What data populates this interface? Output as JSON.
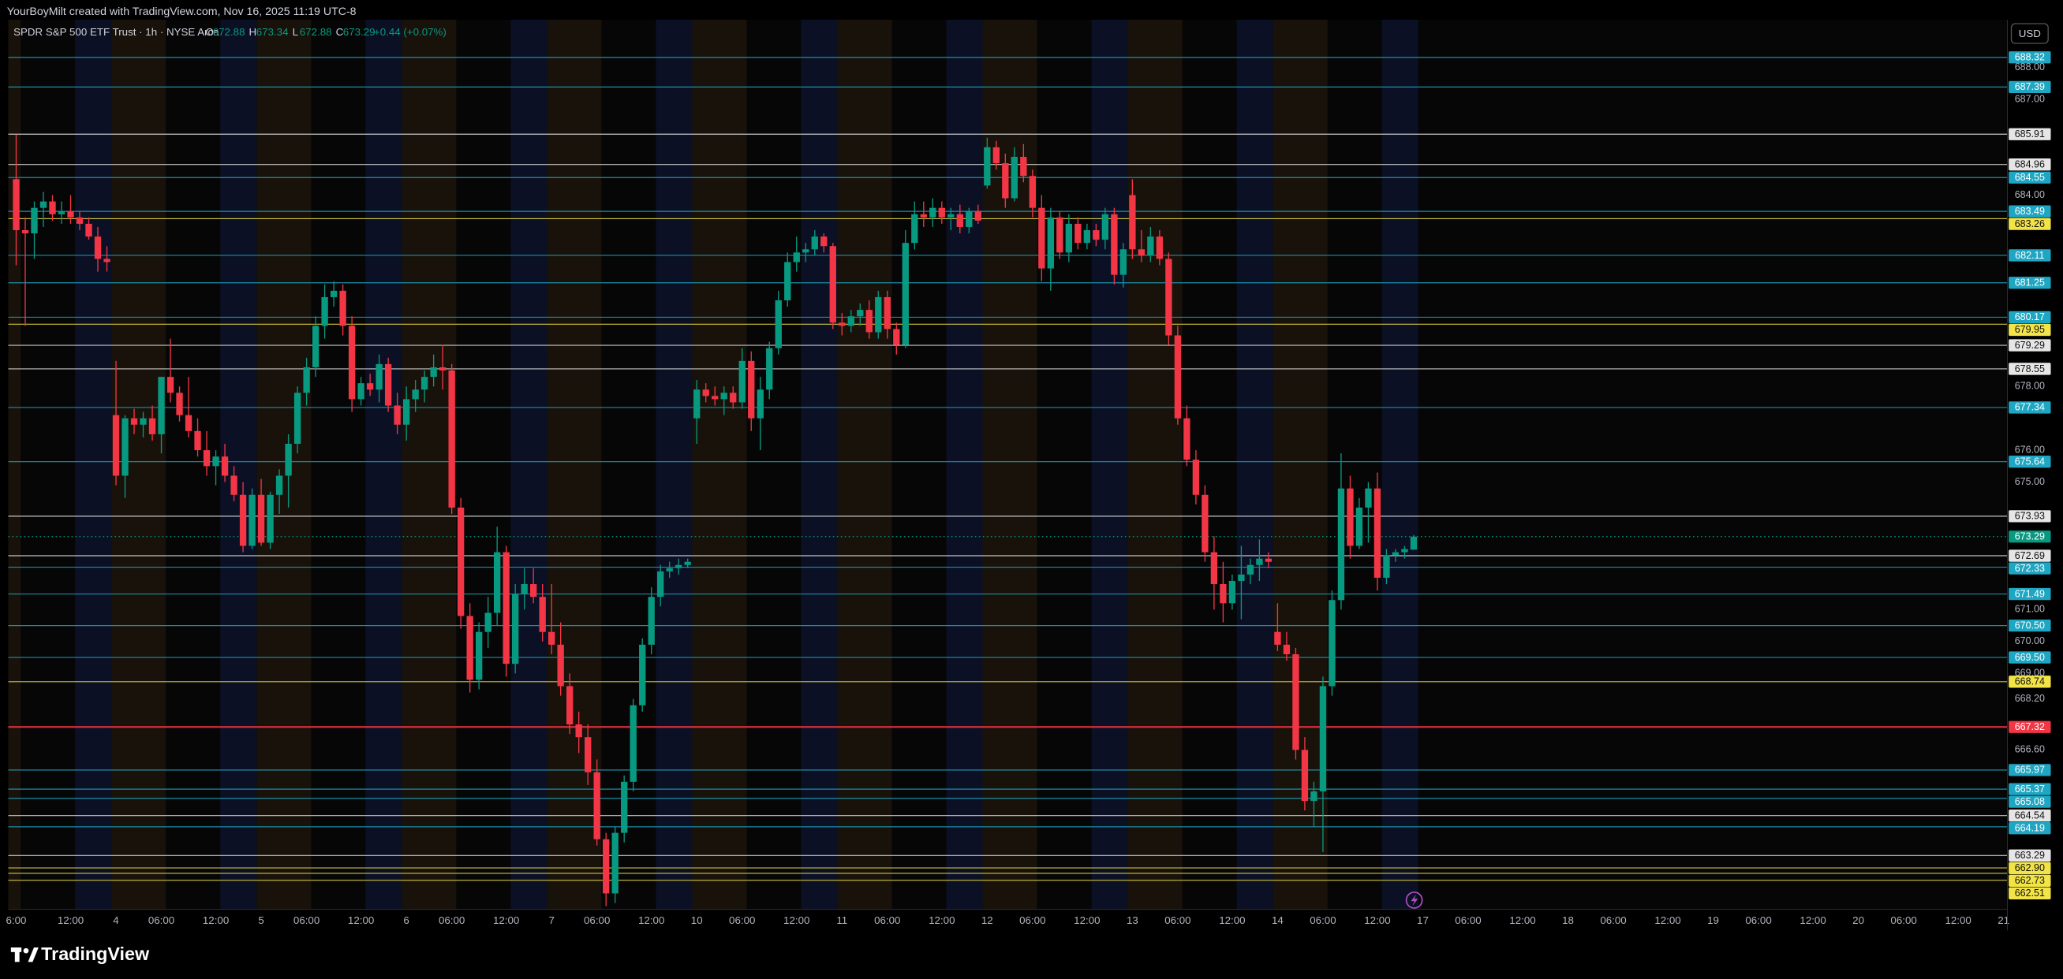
{
  "header": {
    "credit": "YourBoyMilt created with TradingView.com, Nov 16, 2025 11:19 UTC-8"
  },
  "legend": {
    "ohlc_labels": [
      "O",
      "H",
      "L",
      "C"
    ],
    "change": "+0.44 (+0.07%)"
  },
  "footer": {
    "brand": "TradingView"
  },
  "chart_data": {
    "type": "candlestick",
    "title": "SPDR S&P 500 ETF Trust · 1h · NYSE Arca",
    "currency": "USD",
    "up_color": "#089981",
    "down_color": "#f23645",
    "grid": false,
    "ylim": [
      661.6,
      689.5
    ],
    "yticks": [
      {
        "value": 688,
        "label": "688.00"
      },
      {
        "value": 687,
        "label": "687.00"
      },
      {
        "value": 684,
        "label": "684.00"
      },
      {
        "value": 678,
        "label": "678.00"
      },
      {
        "value": 676,
        "label": "676.00"
      },
      {
        "value": 675,
        "label": "675.00"
      },
      {
        "value": 671,
        "label": "671.00"
      },
      {
        "value": 670,
        "label": "670.00"
      },
      {
        "value": 669,
        "label": "669.00"
      },
      {
        "value": 668.2,
        "label": "668.20"
      },
      {
        "value": 666.6,
        "label": "666.60"
      }
    ],
    "categories": [
      "6:00",
      null,
      null,
      null,
      null,
      null,
      "12:00",
      null,
      null,
      null,
      null,
      "4",
      null,
      null,
      null,
      null,
      "06:00",
      null,
      null,
      null,
      null,
      null,
      "12:00",
      null,
      null,
      null,
      null,
      "5",
      null,
      null,
      null,
      null,
      "06:00",
      null,
      null,
      null,
      null,
      null,
      "12:00",
      null,
      null,
      null,
      null,
      "6",
      null,
      null,
      null,
      null,
      "06:00",
      null,
      null,
      null,
      null,
      null,
      "12:00",
      null,
      null,
      null,
      null,
      "7",
      null,
      null,
      null,
      null,
      "06:00",
      null,
      null,
      null,
      null,
      null,
      "12:00",
      null,
      null,
      null,
      null,
      "10",
      null,
      null,
      null,
      null,
      "06:00",
      null,
      null,
      null,
      null,
      null,
      "12:00",
      null,
      null,
      null,
      null,
      "11",
      null,
      null,
      null,
      null,
      "06:00",
      null,
      null,
      null,
      null,
      null,
      "12:00",
      null,
      null,
      null,
      null,
      "12",
      null,
      null,
      null,
      null,
      "06:00",
      null,
      null,
      null,
      null,
      null,
      "12:00",
      null,
      null,
      null,
      null,
      "13",
      null,
      null,
      null,
      null,
      "06:00",
      null,
      null,
      null,
      null,
      null,
      "12:00",
      null,
      null,
      null,
      null,
      "14",
      null,
      null,
      null,
      null,
      "06:00",
      null,
      null,
      null,
      null,
      null,
      "12:00",
      null,
      null,
      null,
      null,
      "17",
      null,
      null,
      null,
      null,
      "06:00",
      null,
      null,
      null,
      null,
      null,
      "12:00",
      null,
      null,
      null,
      null,
      "18",
      null,
      null,
      null,
      null,
      "06:00",
      null,
      null,
      null,
      null,
      null,
      "12:00",
      null,
      null,
      null,
      null,
      "19",
      null,
      null,
      null,
      null,
      "06:00",
      null,
      null,
      null,
      null,
      null,
      "12:00",
      null,
      null,
      null,
      null,
      "20",
      null,
      null,
      null,
      null,
      "06:00",
      null,
      null,
      null,
      null,
      null,
      "12:00",
      null,
      null,
      null,
      null,
      "21"
    ],
    "open": [
      684.5,
      682.9,
      682.8,
      683.6,
      683.8,
      683.4,
      683.5,
      683.3,
      683.1,
      682.7,
      682.0,
      677.1,
      675.2,
      677.0,
      676.8,
      677.0,
      676.5,
      678.3,
      677.8,
      677.1,
      676.6,
      676.0,
      675.5,
      675.8,
      675.2,
      674.6,
      673.0,
      674.6,
      673.1,
      674.6,
      675.2,
      676.2,
      677.8,
      678.6,
      679.9,
      680.8,
      681.0,
      679.9,
      677.6,
      678.1,
      677.9,
      678.7,
      677.4,
      676.8,
      677.6,
      677.9,
      678.3,
      678.6,
      678.5,
      674.2,
      670.8,
      668.8,
      670.3,
      670.9,
      672.8,
      669.3,
      671.5,
      671.8,
      671.4,
      670.3,
      669.9,
      668.6,
      667.4,
      667.0,
      665.9,
      663.8,
      662.1,
      664.0,
      665.6,
      668.0,
      669.9,
      671.4,
      672.2,
      672.3,
      672.4,
      677.0,
      677.9,
      677.7,
      677.6,
      677.8,
      677.5,
      678.8,
      677.0,
      677.9,
      679.2,
      680.7,
      681.9,
      682.2,
      682.3,
      682.7,
      682.4,
      680.0,
      679.9,
      680.2,
      680.4,
      679.7,
      680.8,
      679.8,
      679.3,
      682.5,
      683.4,
      683.3,
      683.6,
      683.3,
      683.4,
      683.0,
      683.5,
      684.3,
      685.5,
      685.0,
      683.9,
      685.2,
      684.6,
      683.6,
      681.7,
      683.3,
      682.2,
      683.1,
      682.5,
      682.9,
      682.6,
      683.4,
      681.5,
      684.0,
      682.3,
      682.1,
      682.7,
      682.0,
      679.6,
      677.0,
      675.7,
      674.6,
      672.8,
      671.8,
      671.2,
      671.9,
      672.1,
      672.4,
      672.6,
      670.3,
      669.9,
      669.6,
      666.6,
      665.0,
      665.3,
      668.6,
      671.3,
      674.8,
      673.0,
      674.2,
      674.8,
      672.0,
      672.7,
      672.8,
      672.88,
      null,
      null,
      null,
      null,
      null,
      null,
      null,
      null,
      null,
      null,
      null,
      null,
      null,
      null,
      null,
      null,
      null,
      null,
      null,
      null,
      null,
      null,
      null,
      null,
      null,
      null,
      null,
      null,
      null,
      null,
      null,
      null,
      null,
      null,
      null,
      null,
      null,
      null,
      null,
      null,
      null,
      null,
      null,
      null,
      null,
      null,
      null,
      null,
      null,
      null,
      null,
      null,
      null,
      null,
      null,
      null,
      null,
      null,
      null,
      null,
      null,
      null,
      null,
      null,
      null
    ],
    "high": [
      685.9,
      683.3,
      683.8,
      684.1,
      684.0,
      683.8,
      684.0,
      683.5,
      683.3,
      683.0,
      682.4,
      678.8,
      677.1,
      677.3,
      677.2,
      677.4,
      678.3,
      679.5,
      678.0,
      678.3,
      677.0,
      676.6,
      676.0,
      676.2,
      675.5,
      675.0,
      674.8,
      675.1,
      674.7,
      675.4,
      676.5,
      678.0,
      678.9,
      680.2,
      681.2,
      681.3,
      681.2,
      680.2,
      678.3,
      678.4,
      679.0,
      678.9,
      677.8,
      678.0,
      678.2,
      678.5,
      679.0,
      679.3,
      678.7,
      674.5,
      671.2,
      670.6,
      671.4,
      673.6,
      673.0,
      671.8,
      672.3,
      672.3,
      671.8,
      671.8,
      670.6,
      669.0,
      667.8,
      667.4,
      666.3,
      664.0,
      664.2,
      665.8,
      668.2,
      670.1,
      671.7,
      672.4,
      672.5,
      672.6,
      672.6,
      678.2,
      678.1,
      678.0,
      678.0,
      678.0,
      679.2,
      679.1,
      678.3,
      679.4,
      681.0,
      682.2,
      682.7,
      682.5,
      682.9,
      682.8,
      682.5,
      680.3,
      680.4,
      680.6,
      680.7,
      681.0,
      681.0,
      680.0,
      682.9,
      683.8,
      683.8,
      683.9,
      683.8,
      683.6,
      683.7,
      683.6,
      683.7,
      685.8,
      685.7,
      685.3,
      685.5,
      685.6,
      684.8,
      684.0,
      683.6,
      683.5,
      683.4,
      683.3,
      683.1,
      683.1,
      683.6,
      683.6,
      682.5,
      684.5,
      682.9,
      683.0,
      682.9,
      682.2,
      679.9,
      677.4,
      676.0,
      674.9,
      673.3,
      672.5,
      672.1,
      673.0,
      672.6,
      673.2,
      672.8,
      671.2,
      670.3,
      669.8,
      667.0,
      665.6,
      668.9,
      671.6,
      675.9,
      675.2,
      674.5,
      675.0,
      675.3,
      672.9,
      672.9,
      673.0,
      673.34,
      null,
      null,
      null,
      null,
      null,
      null,
      null,
      null,
      null,
      null,
      null,
      null,
      null,
      null,
      null,
      null,
      null,
      null,
      null,
      null,
      null,
      null,
      null,
      null,
      null,
      null,
      null,
      null,
      null,
      null,
      null,
      null,
      null,
      null,
      null,
      null,
      null,
      null,
      null,
      null,
      null,
      null,
      null,
      null,
      null,
      null,
      null,
      null,
      null,
      null,
      null,
      null,
      null,
      null,
      null,
      null,
      null,
      null,
      null,
      null,
      null,
      null,
      null,
      null,
      null
    ],
    "low": [
      681.8,
      679.9,
      682.0,
      683.0,
      683.2,
      683.1,
      683.1,
      682.9,
      682.6,
      681.6,
      681.6,
      674.9,
      674.5,
      676.5,
      676.4,
      676.3,
      675.9,
      677.5,
      676.9,
      676.4,
      675.8,
      675.2,
      674.9,
      675.0,
      674.4,
      672.8,
      672.9,
      673.0,
      672.9,
      674.0,
      674.2,
      675.9,
      677.4,
      678.3,
      679.5,
      680.5,
      679.6,
      677.2,
      677.4,
      677.7,
      677.5,
      677.2,
      676.5,
      676.3,
      677.2,
      677.5,
      678.0,
      677.9,
      674.0,
      670.4,
      668.4,
      668.5,
      669.8,
      670.5,
      668.9,
      669.0,
      671.0,
      671.2,
      670.0,
      669.6,
      668.3,
      667.1,
      666.5,
      665.5,
      663.6,
      661.7,
      661.8,
      663.7,
      665.3,
      667.8,
      669.6,
      671.1,
      672.0,
      672.1,
      672.3,
      676.2,
      677.5,
      677.4,
      677.1,
      677.3,
      677.3,
      676.6,
      676.0,
      677.6,
      679.0,
      680.5,
      681.6,
      681.9,
      682.1,
      682.2,
      679.8,
      679.6,
      679.7,
      679.9,
      679.5,
      679.5,
      679.5,
      679.0,
      679.2,
      682.3,
      683.0,
      683.0,
      683.1,
      682.9,
      682.8,
      682.8,
      683.1,
      684.2,
      684.8,
      683.6,
      683.8,
      684.4,
      683.3,
      681.3,
      681.0,
      682.0,
      681.9,
      682.3,
      682.3,
      682.4,
      682.3,
      681.2,
      681.1,
      682.0,
      681.9,
      681.9,
      681.8,
      679.3,
      676.8,
      675.5,
      674.3,
      672.5,
      671.0,
      670.6,
      671.0,
      670.7,
      671.8,
      671.9,
      672.3,
      669.7,
      669.4,
      666.3,
      664.7,
      664.2,
      663.4,
      668.3,
      671.0,
      672.6,
      672.9,
      673.1,
      671.6,
      671.8,
      672.5,
      672.6,
      672.88,
      null,
      null,
      null,
      null,
      null,
      null,
      null,
      null,
      null,
      null,
      null,
      null,
      null,
      null,
      null,
      null,
      null,
      null,
      null,
      null,
      null,
      null,
      null,
      null,
      null,
      null,
      null,
      null,
      null,
      null,
      null,
      null,
      null,
      null,
      null,
      null,
      null,
      null,
      null,
      null,
      null,
      null,
      null,
      null,
      null,
      null,
      null,
      null,
      null,
      null,
      null,
      null,
      null,
      null,
      null,
      null,
      null,
      null,
      null,
      null,
      null,
      null,
      null,
      null,
      null
    ],
    "close": [
      682.9,
      682.8,
      683.6,
      683.8,
      683.4,
      683.5,
      683.3,
      683.1,
      682.7,
      682.0,
      681.9,
      675.2,
      677.0,
      676.8,
      677.0,
      676.5,
      678.3,
      677.8,
      677.1,
      676.6,
      676.0,
      675.5,
      675.8,
      675.2,
      674.6,
      673.0,
      674.6,
      673.1,
      674.6,
      675.2,
      676.2,
      677.8,
      678.6,
      679.9,
      680.8,
      681.0,
      679.9,
      677.6,
      678.1,
      677.9,
      678.7,
      677.4,
      676.8,
      677.6,
      677.9,
      678.3,
      678.6,
      678.5,
      674.2,
      670.8,
      668.8,
      670.3,
      670.9,
      672.8,
      669.3,
      671.5,
      671.8,
      671.4,
      670.3,
      669.9,
      668.6,
      667.4,
      667.0,
      665.9,
      663.8,
      662.1,
      664.0,
      665.6,
      668.0,
      669.9,
      671.4,
      672.2,
      672.3,
      672.4,
      672.5,
      677.9,
      677.7,
      677.6,
      677.8,
      677.5,
      678.8,
      677.0,
      677.9,
      679.2,
      680.7,
      681.9,
      682.2,
      682.3,
      682.7,
      682.4,
      680.0,
      679.9,
      680.2,
      680.4,
      679.7,
      680.8,
      679.8,
      679.3,
      682.5,
      683.4,
      683.3,
      683.6,
      683.3,
      683.4,
      683.0,
      683.5,
      683.2,
      685.5,
      685.0,
      683.9,
      685.2,
      684.6,
      683.6,
      681.7,
      683.3,
      682.2,
      683.1,
      682.5,
      682.9,
      682.6,
      683.4,
      681.5,
      682.3,
      682.3,
      682.1,
      682.7,
      682.0,
      679.6,
      677.0,
      675.7,
      674.6,
      672.8,
      671.8,
      671.2,
      671.9,
      672.1,
      672.4,
      672.6,
      672.5,
      669.9,
      669.6,
      666.6,
      665.0,
      665.3,
      668.6,
      671.3,
      674.8,
      673.0,
      674.2,
      674.8,
      672.0,
      672.7,
      672.8,
      672.9,
      673.29,
      null,
      null,
      null,
      null,
      null,
      null,
      null,
      null,
      null,
      null,
      null,
      null,
      null,
      null,
      null,
      null,
      null,
      null,
      null,
      null,
      null,
      null,
      null,
      null,
      null,
      null,
      null,
      null,
      null,
      null,
      null,
      null,
      null,
      null,
      null,
      null,
      null,
      null,
      null,
      null,
      null,
      null,
      null,
      null,
      null,
      null,
      null,
      null,
      null,
      null,
      null,
      null,
      null,
      null,
      null,
      null,
      null,
      null,
      null,
      null,
      null,
      null,
      null,
      null,
      null
    ],
    "levels": [
      {
        "value": 688.32,
        "label": "688.32",
        "color": "#1fa6c2"
      },
      {
        "value": 687.39,
        "label": "687.39",
        "color": "#1fa6c2"
      },
      {
        "value": 685.91,
        "label": "685.91",
        "color": "#e6e6e6"
      },
      {
        "value": 684.96,
        "label": "684.96",
        "color": "#e6e6e6"
      },
      {
        "value": 684.55,
        "label": "684.55",
        "color": "#1fa6c2"
      },
      {
        "value": 683.49,
        "label": "683.49",
        "color": "#1fa6c2"
      },
      {
        "value": 683.26,
        "label": "683.26",
        "color": "#f2e447"
      },
      {
        "value": 682.11,
        "label": "682.11",
        "color": "#1fa6c2"
      },
      {
        "value": 681.25,
        "label": "681.25",
        "color": "#1fa6c2"
      },
      {
        "value": 680.17,
        "label": "680.17",
        "color": "#1fa6c2"
      },
      {
        "value": 679.95,
        "label": "679.95",
        "color": "#f2e447"
      },
      {
        "value": 679.29,
        "label": "679.29",
        "color": "#e6e6e6"
      },
      {
        "value": 678.55,
        "label": "678.55",
        "color": "#e6e6e6"
      },
      {
        "value": 677.34,
        "label": "677.34",
        "color": "#1fa6c2"
      },
      {
        "value": 675.64,
        "label": "675.64",
        "color": "#1fa6c2"
      },
      {
        "value": 673.93,
        "label": "673.93",
        "color": "#e6e6e6"
      },
      {
        "value": 672.69,
        "label": "672.69",
        "color": "#e6e6e6"
      },
      {
        "value": 672.33,
        "label": "672.33",
        "color": "#1fa6c2"
      },
      {
        "value": 671.49,
        "label": "671.49",
        "color": "#1fa6c2"
      },
      {
        "value": 670.5,
        "label": "670.50",
        "color": "#1fa6c2"
      },
      {
        "value": 669.5,
        "label": "669.50",
        "color": "#1fa6c2"
      },
      {
        "value": 668.74,
        "label": "668.74",
        "color": "#f2e447"
      },
      {
        "value": 667.32,
        "label": "667.32",
        "color": "#f23645"
      },
      {
        "value": 665.97,
        "label": "665.97",
        "color": "#1fa6c2"
      },
      {
        "value": 665.37,
        "label": "665.37",
        "color": "#1fa6c2"
      },
      {
        "value": 665.08,
        "label": "665.08",
        "color": "#1fa6c2"
      },
      {
        "value": 664.54,
        "label": "664.54",
        "color": "#e6e6e6"
      },
      {
        "value": 664.19,
        "label": "664.19",
        "color": "#1fa6c2"
      },
      {
        "value": 663.29,
        "label": "663.29",
        "color": "#e6e6e6"
      },
      {
        "value": 662.9,
        "label": "662.90",
        "color": "#f2e447"
      },
      {
        "value": 662.73,
        "label": "662.73",
        "color": "#f2e447"
      },
      {
        "value": 662.51,
        "label": "662.51",
        "color": "#f2e447"
      }
    ]
  }
}
